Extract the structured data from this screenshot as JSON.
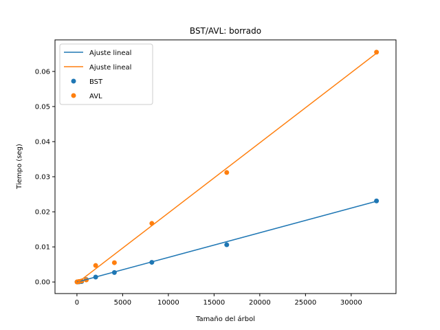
{
  "chart_data": {
    "type": "scatter",
    "title": "BST/AVL: borrado",
    "xlabel": "Tamaño del árbol",
    "ylabel": "Tiempo (seg)",
    "xlim": [
      -2400,
      34900
    ],
    "ylim": [
      -0.0033,
      0.069
    ],
    "xticks": [
      0,
      5000,
      10000,
      15000,
      20000,
      25000,
      30000
    ],
    "yticks": [
      0.0,
      0.01,
      0.02,
      0.03,
      0.04,
      0.05,
      0.06
    ],
    "xtick_labels": [
      "0",
      "5000",
      "10000",
      "15000",
      "20000",
      "25000",
      "30000"
    ],
    "ytick_labels": [
      "0.00",
      "0.01",
      "0.02",
      "0.03",
      "0.04",
      "0.05",
      "0.06"
    ],
    "grid": false,
    "legend": {
      "position": "top-left",
      "entries": [
        "Ajuste lineal",
        "Ajuste lineal",
        "BST",
        "AVL"
      ]
    },
    "colors": {
      "bst": "#1f77b4",
      "avl": "#ff7f0e"
    },
    "series": [
      {
        "name": "BST",
        "kind": "scatter",
        "color": "#1f77b4",
        "x": [
          16,
          32,
          64,
          128,
          256,
          512,
          1024,
          2048,
          4096,
          8192,
          16384,
          32768
        ],
        "y": [
          1e-05,
          1e-05,
          2e-05,
          3e-05,
          6e-05,
          0.00012,
          0.0007,
          0.0014,
          0.0027,
          0.0056,
          0.0106,
          0.0231
        ]
      },
      {
        "name": "AVL",
        "kind": "scatter",
        "color": "#ff7f0e",
        "x": [
          16,
          32,
          64,
          128,
          256,
          512,
          1024,
          2048,
          4096,
          8192,
          16384,
          32768
        ],
        "y": [
          1e-05,
          2e-05,
          3e-05,
          8e-05,
          0.00016,
          0.0003,
          0.0006,
          0.0047,
          0.0055,
          0.0167,
          0.0312,
          0.0655
        ]
      },
      {
        "name": "Ajuste lineal",
        "kind": "line",
        "color": "#1f77b4",
        "x": [
          16,
          32768
        ],
        "y": [
          -1e-05,
          0.023
        ]
      },
      {
        "name": "Ajuste lineal",
        "kind": "line",
        "color": "#ff7f0e",
        "x": [
          16,
          32768
        ],
        "y": [
          -0.0003,
          0.0652
        ]
      }
    ]
  }
}
